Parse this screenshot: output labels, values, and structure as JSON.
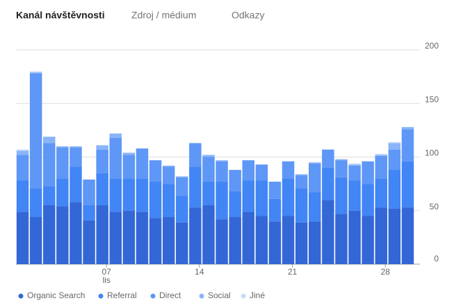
{
  "tabs": [
    "Kanál návštěvnosti",
    "Zdroj / médium",
    "Odkazy"
  ],
  "active_tab": 0,
  "chart_data": {
    "type": "stacked_bar",
    "categories": [
      null,
      null,
      null,
      null,
      null,
      null,
      "07",
      null,
      null,
      null,
      null,
      null,
      null,
      "14",
      null,
      null,
      null,
      null,
      null,
      null,
      "21",
      null,
      null,
      null,
      null,
      null,
      null,
      "28",
      null,
      null
    ],
    "month_label": "lis",
    "ylim": [
      0,
      200
    ],
    "yticks": [
      0,
      50,
      100,
      150,
      200
    ],
    "grid": true,
    "legend": "bottom",
    "series": [
      {
        "name": "Organic Search",
        "color": "#3367d6",
        "values": [
          49,
          44,
          55,
          54,
          58,
          41,
          55,
          49,
          50,
          49,
          43,
          44,
          39,
          53,
          55,
          42,
          44,
          49,
          45,
          40,
          45,
          39,
          40,
          60,
          47,
          50,
          45,
          53,
          52,
          53
        ]
      },
      {
        "name": "Referral",
        "color": "#4285f4",
        "values": [
          29,
          27,
          18,
          26,
          33,
          14,
          30,
          31,
          30,
          31,
          34,
          31,
          25,
          38,
          22,
          35,
          24,
          29,
          33,
          21,
          35,
          32,
          27,
          30,
          34,
          28,
          30,
          27,
          36,
          43
        ]
      },
      {
        "name": "Direct",
        "color": "#5e97f6",
        "values": [
          24,
          107,
          40,
          29,
          18,
          24,
          22,
          38,
          22,
          28,
          20,
          16,
          17,
          22,
          23,
          19,
          20,
          19,
          15,
          16,
          16,
          12,
          27,
          17,
          16,
          14,
          21,
          21,
          19,
          30
        ]
      },
      {
        "name": "Social",
        "color": "#8ab4f8",
        "values": [
          4,
          1,
          6,
          1,
          1,
          0,
          4,
          4,
          2,
          0,
          0,
          1,
          1,
          0,
          2,
          1,
          0,
          0,
          0,
          0,
          0,
          1,
          1,
          0,
          1,
          1,
          0,
          1,
          6,
          2
        ]
      },
      {
        "name": "Jiné",
        "color": "#c6dafc",
        "values": [
          1,
          1,
          0,
          0,
          0,
          0,
          0,
          0,
          0,
          0,
          0,
          0,
          0,
          0,
          0,
          0,
          0,
          0,
          0,
          0,
          0,
          0,
          0,
          0,
          0,
          1,
          0,
          1,
          1,
          0
        ]
      }
    ]
  }
}
